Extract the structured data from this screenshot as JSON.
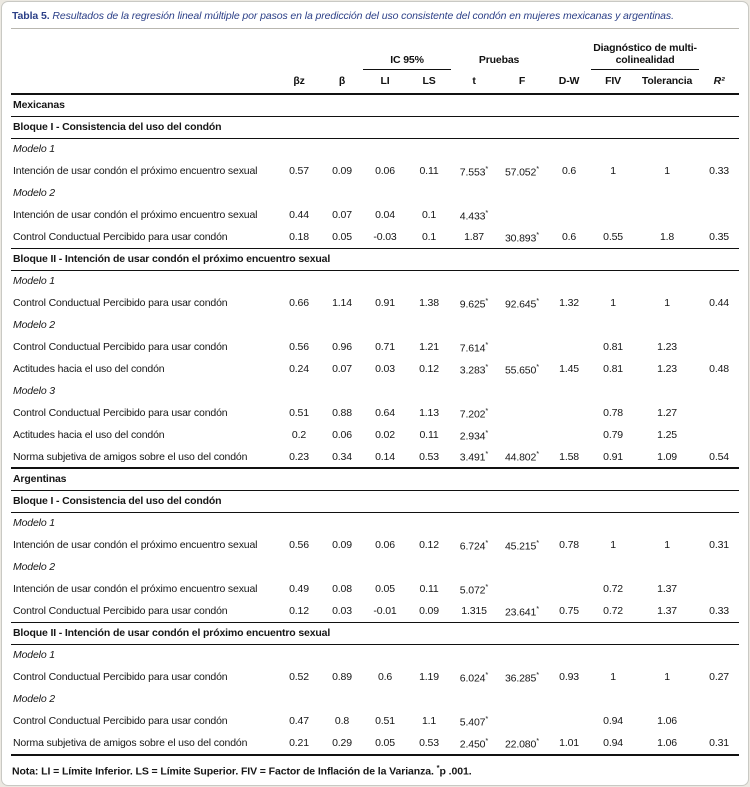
{
  "colors": {
    "title_accent": "#2b3f87",
    "rule_dark": "#111111",
    "card_border": "#c9c9c4"
  },
  "table": {
    "title_label": "Tabla 5.",
    "title_text": " Resultados de la regresión lineal múltiple por pasos en la predicción del uso consistente del condón en mujeres mexicanas y argentinas.",
    "group_headers": {
      "ic95": "IC 95%",
      "pruebas": "Pruebas",
      "multicol": "Diagnóstico de multi-colinealidad"
    },
    "columns": [
      "βz",
      "β",
      "LI",
      "LS",
      "t",
      "F",
      "D-W",
      "FIV",
      "Tolerancia",
      "R²"
    ],
    "rows": [
      {
        "type": "section",
        "label": "Mexicanas"
      },
      {
        "type": "block",
        "label": "Bloque I - Consistencia del uso del condón"
      },
      {
        "type": "model",
        "label": "Modelo 1"
      },
      {
        "type": "data",
        "label": "Intención de usar condón el próximo encuentro sexual",
        "values": [
          "0.57",
          "0.09",
          "0.06",
          "0.11",
          "7.553*",
          "57.052*",
          "0.6",
          "1",
          "1",
          "0.33"
        ]
      },
      {
        "type": "model",
        "label": "Modelo 2"
      },
      {
        "type": "data",
        "label": "Intención de usar condón el próximo encuentro sexual",
        "values": [
          "0.44",
          "0.07",
          "0.04",
          "0.1",
          "4.433*",
          "",
          "",
          "",
          "",
          ""
        ]
      },
      {
        "type": "data",
        "label": "Control Conductual Percibido para usar condón",
        "values": [
          "0.18",
          "0.05",
          "-0.03",
          "0.1",
          "1.87",
          "30.893*",
          "0.6",
          "0.55",
          "1.8",
          "0.35"
        ]
      },
      {
        "type": "block",
        "label": "Bloque II - Intención de usar condón el próximo encuentro sexual"
      },
      {
        "type": "model",
        "label": "Modelo 1"
      },
      {
        "type": "data",
        "label": "Control Conductual Percibido para usar condón",
        "values": [
          "0.66",
          "1.14",
          "0.91",
          "1.38",
          "9.625*",
          "92.645*",
          "1.32",
          "1",
          "1",
          "0.44"
        ]
      },
      {
        "type": "model",
        "label": "Modelo 2"
      },
      {
        "type": "data",
        "label": "Control Conductual Percibido para usar condón",
        "values": [
          "0.56",
          "0.96",
          "0.71",
          "1.21",
          "7.614*",
          "",
          "",
          "0.81",
          "1.23",
          ""
        ]
      },
      {
        "type": "data",
        "label": "Actitudes hacia el uso del condón",
        "values": [
          "0.24",
          "0.07",
          "0.03",
          "0.12",
          "3.283*",
          "55.650*",
          "1.45",
          "0.81",
          "1.23",
          "0.48"
        ]
      },
      {
        "type": "model",
        "label": "Modelo 3"
      },
      {
        "type": "data",
        "label": "Control Conductual Percibido para usar condón",
        "values": [
          "0.51",
          "0.88",
          "0.64",
          "1.13",
          "7.202*",
          "",
          "",
          "0.78",
          "1.27",
          ""
        ]
      },
      {
        "type": "data",
        "label": "Actitudes hacia el uso del condón",
        "values": [
          "0.2",
          "0.06",
          "0.02",
          "0.11",
          "2.934*",
          "",
          "",
          "0.79",
          "1.25",
          ""
        ]
      },
      {
        "type": "data",
        "label": "Norma subjetiva de amigos sobre el uso del condón",
        "values": [
          "0.23",
          "0.34",
          "0.14",
          "0.53",
          "3.491*",
          "44.802*",
          "1.58",
          "0.91",
          "1.09",
          "0.54"
        ]
      },
      {
        "type": "section",
        "label": "Argentinas"
      },
      {
        "type": "block",
        "label": "Bloque I - Consistencia del uso del condón"
      },
      {
        "type": "model",
        "label": "Modelo 1"
      },
      {
        "type": "data",
        "label": "Intención de usar condón el próximo encuentro sexual",
        "values": [
          "0.56",
          "0.09",
          "0.06",
          "0.12",
          "6.724*",
          "45.215*",
          "0.78",
          "1",
          "1",
          "0.31"
        ]
      },
      {
        "type": "model",
        "label": "Modelo 2"
      },
      {
        "type": "data",
        "label": "Intención de usar condón el próximo encuentro sexual",
        "values": [
          "0.49",
          "0.08",
          "0.05",
          "0.11",
          "5.072*",
          "",
          "",
          "0.72",
          "1.37",
          ""
        ]
      },
      {
        "type": "data",
        "label": "Control Conductual Percibido para usar condón",
        "values": [
          "0.12",
          "0.03",
          "-0.01",
          "0.09",
          "1.315",
          "23.641*",
          "0.75",
          "0.72",
          "1.37",
          "0.33"
        ]
      },
      {
        "type": "block",
        "label": "Bloque II - Intención de usar condón el próximo encuentro sexual"
      },
      {
        "type": "model",
        "label": "Modelo 1"
      },
      {
        "type": "data",
        "label": "Control Conductual Percibido para usar condón",
        "values": [
          "0.52",
          "0.89",
          "0.6",
          "1.19",
          "6.024*",
          "36.285*",
          "0.93",
          "1",
          "1",
          "0.27"
        ]
      },
      {
        "type": "model",
        "label": "Modelo 2"
      },
      {
        "type": "data",
        "label": "Control Conductual Percibido para usar condón",
        "values": [
          "0.47",
          "0.8",
          "0.51",
          "1.1",
          "5.407*",
          "",
          "",
          "0.94",
          "1.06",
          ""
        ]
      },
      {
        "type": "data",
        "label": "Norma subjetiva de amigos sobre el uso del condón",
        "values": [
          "0.21",
          "0.29",
          "0.05",
          "0.53",
          "2.450*",
          "22.080*",
          "1.01",
          "0.94",
          "1.06",
          "0.31"
        ]
      }
    ],
    "note": {
      "text": "Nota: LI = Límite Inferior. LS = Límite Superior. FIV = Factor de Inflación de la Varianza. ",
      "sig": "*",
      "p": "p .001."
    }
  }
}
